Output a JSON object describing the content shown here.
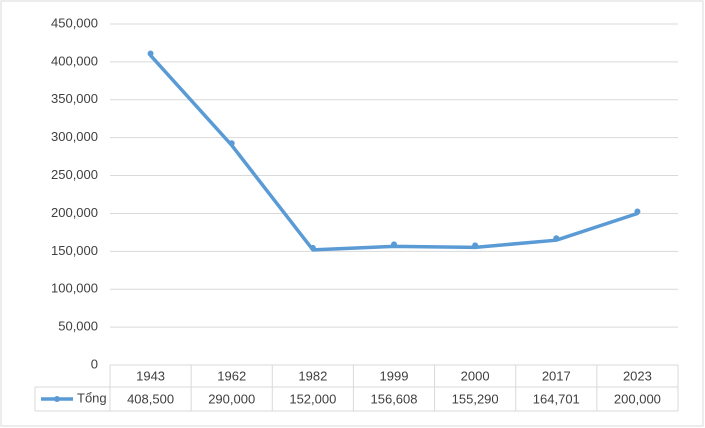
{
  "chart_data": {
    "type": "line",
    "categories": [
      "1943",
      "1962",
      "1982",
      "1999",
      "2000",
      "2017",
      "2023"
    ],
    "series": [
      {
        "name": "Tổng",
        "color": "#5b9bd5",
        "values": [
          408500,
          290000,
          152000,
          156608,
          155290,
          164701,
          200000
        ],
        "value_labels": [
          "408,500",
          "290,000",
          "152,000",
          "156,608",
          "155,290",
          "164,701",
          "200,000"
        ]
      }
    ],
    "ylim": [
      0,
      450000
    ],
    "yticks": [
      0,
      {
        "value": 50000,
        "label": "50,000"
      },
      {
        "value": 100000,
        "label": "100,000"
      },
      {
        "value": 150000,
        "label": "150,000"
      },
      {
        "value": 200000,
        "label": "200,000"
      },
      {
        "value": 250000,
        "label": "250,000"
      },
      {
        "value": 300000,
        "label": "300,000"
      },
      {
        "value": 350000,
        "label": "350,000"
      },
      {
        "value": 400000,
        "label": "400,000"
      },
      {
        "value": 450000,
        "label": "450,000"
      }
    ],
    "grid": true,
    "legend": "bottom-left"
  }
}
